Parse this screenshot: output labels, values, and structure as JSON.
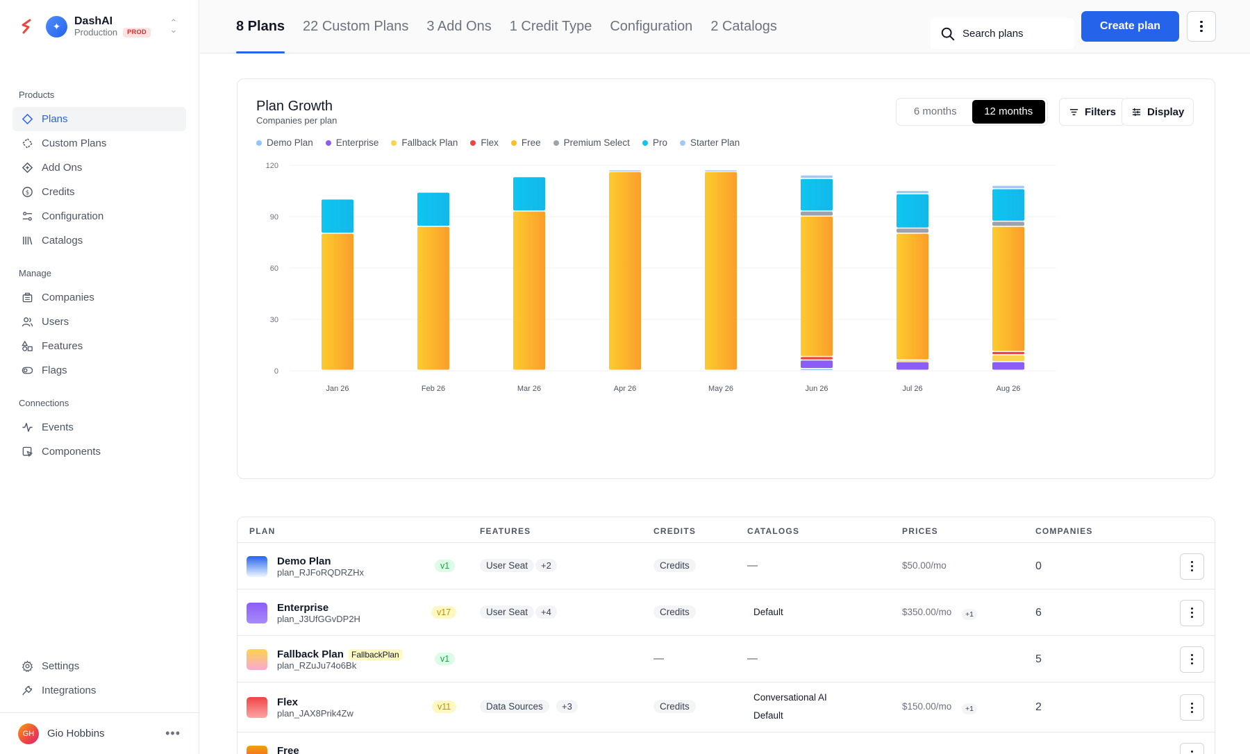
{
  "org": {
    "name": "DashAI",
    "environment": "Production",
    "env_badge": "PROD"
  },
  "nav": {
    "sections": {
      "products": "Products",
      "manage": "Manage",
      "connections": "Connections"
    },
    "products": [
      {
        "label": "Plans",
        "icon": "diamond-icon",
        "active": true
      },
      {
        "label": "Custom Plans",
        "icon": "dashed-diamond-icon"
      },
      {
        "label": "Add Ons",
        "icon": "diamond-plus-icon"
      },
      {
        "label": "Credits",
        "icon": "dollar-circle-icon"
      },
      {
        "label": "Configuration",
        "icon": "sliders-icon"
      },
      {
        "label": "Catalogs",
        "icon": "library-icon"
      }
    ],
    "manage": [
      {
        "label": "Companies",
        "icon": "building-icon"
      },
      {
        "label": "Users",
        "icon": "users-icon"
      },
      {
        "label": "Features",
        "icon": "shapes-icon"
      },
      {
        "label": "Flags",
        "icon": "toggle-icon"
      }
    ],
    "connections": [
      {
        "label": "Events",
        "icon": "activity-icon"
      },
      {
        "label": "Components",
        "icon": "component-icon"
      }
    ],
    "bottom": [
      {
        "label": "Settings",
        "icon": "gear-icon"
      },
      {
        "label": "Integrations",
        "icon": "plug-icon"
      }
    ]
  },
  "user": {
    "initials": "GH",
    "name": "Gio Hobbins"
  },
  "tabs": [
    {
      "label": "8 Plans",
      "active": true
    },
    {
      "label": "22 Custom Plans"
    },
    {
      "label": "3 Add Ons"
    },
    {
      "label": "1 Credit Type"
    },
    {
      "label": "Configuration"
    },
    {
      "label": "2 Catalogs"
    }
  ],
  "search": {
    "placeholder": "Search plans"
  },
  "actions": {
    "create_label": "Create plan"
  },
  "chart_card": {
    "range_options": [
      "6 months",
      "12 months"
    ],
    "range_selected": "12 months",
    "filters_label": "Filters",
    "display_label": "Display"
  },
  "chart_data": {
    "type": "bar",
    "stacked": true,
    "title": "Plan Growth",
    "subtitle": "Companies per plan",
    "categories": [
      "Jan 26",
      "Feb 26",
      "Mar 26",
      "Apr 26",
      "May 26",
      "Jun 26",
      "Jul 26",
      "Aug 26"
    ],
    "ylim": [
      0,
      120
    ],
    "yticks": [
      0,
      30,
      60,
      90,
      120
    ],
    "grid": true,
    "legend_position": "top-left",
    "series": [
      {
        "name": "Demo Plan",
        "color": "#93c5fd",
        "values": [
          0,
          0,
          0,
          0,
          0,
          1,
          0,
          0
        ]
      },
      {
        "name": "Enterprise",
        "color": "#8b5cf6",
        "values": [
          0,
          0,
          0,
          0,
          0,
          5,
          5,
          5
        ]
      },
      {
        "name": "Fallback Plan",
        "color": "#fcd34d",
        "values": [
          0,
          0,
          0,
          0,
          0,
          0,
          1,
          4
        ]
      },
      {
        "name": "Flex",
        "color": "#ef4444",
        "values": [
          0,
          0,
          0,
          0,
          0,
          2,
          0,
          2
        ]
      },
      {
        "name": "Free",
        "color": "#fbbf24",
        "values": [
          80,
          84,
          93,
          116,
          116,
          82,
          74,
          73
        ]
      },
      {
        "name": "Premium Select",
        "color": "#9ca3af",
        "values": [
          0,
          0,
          0,
          0,
          0,
          3,
          3,
          3
        ]
      },
      {
        "name": "Pro",
        "color": "#0ec5f0",
        "values": [
          20,
          20,
          20,
          0,
          0,
          19,
          20,
          19
        ]
      },
      {
        "name": "Starter Plan",
        "color": "#a5c8f7",
        "values": [
          0,
          0,
          0,
          1,
          1,
          2,
          2,
          2
        ]
      }
    ]
  },
  "table": {
    "headers": {
      "plan": "PLAN",
      "features": "FEATURES",
      "credits": "CREDITS",
      "catalogs": "CATALOGS",
      "prices": "PRICES",
      "companies": "COMPANIES"
    },
    "rows": [
      {
        "name": "Demo Plan",
        "id": "plan_RJFoRQDRZHx",
        "version": "v1",
        "version_color": "green",
        "swatch": [
          "#2563eb",
          "#eff6ff"
        ],
        "feature": "User Seat",
        "feature_more": "+2",
        "credits": "Credits",
        "catalogs": [
          "—"
        ],
        "price": "$50.00/mo",
        "price_more": "",
        "companies": "0"
      },
      {
        "name": "Enterprise",
        "id": "plan_J3UfGGvDP2H",
        "version": "v17",
        "version_color": "yellow",
        "swatch": [
          "#8b5cf6",
          "#a78bfa"
        ],
        "feature": "User Seat",
        "feature_more": "+4",
        "credits": "Credits",
        "catalogs": [
          "Default"
        ],
        "price": "$350.00/mo",
        "price_more": "+1",
        "companies": "6"
      },
      {
        "name": "Fallback Plan",
        "tag": "FallbackPlan",
        "id": "plan_RZuJu74o6Bk",
        "version": "v1",
        "version_color": "green",
        "swatch": [
          "#fcd34d",
          "#f9a8d4"
        ],
        "feature": "",
        "feature_more": "",
        "credits": "—",
        "catalogs": [
          "—"
        ],
        "price": "",
        "price_more": "",
        "companies": "5"
      },
      {
        "name": "Flex",
        "id": "plan_JAX8Prik4Zw",
        "version": "v11",
        "version_color": "yellow",
        "swatch": [
          "#ef4444",
          "#fca5a5"
        ],
        "feature": "Data Sources",
        "feature_more": "+3",
        "credits": "Credits",
        "catalogs": [
          "Conversational AI",
          "Default"
        ],
        "price": "$150.00/mo",
        "price_more": "+1",
        "companies": "2"
      },
      {
        "name": "Free",
        "id": "",
        "version": "",
        "version_color": "yellow",
        "swatch": [
          "#f59e0b",
          "#ef4444"
        ],
        "feature": "",
        "feature_more": "",
        "credits": "",
        "catalogs": [],
        "price": "",
        "price_more": "",
        "companies": ""
      }
    ]
  }
}
